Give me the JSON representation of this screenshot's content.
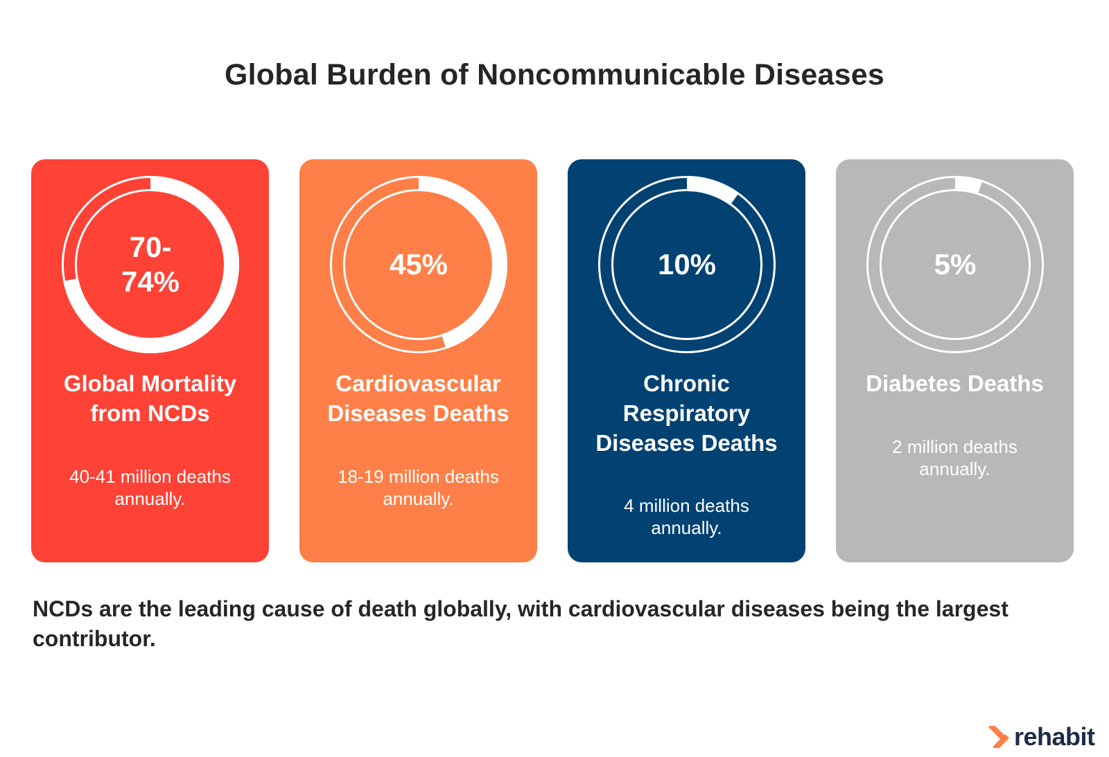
{
  "title": "Global Burden of Noncommunicable Diseases",
  "chart_data": {
    "type": "donut-gauges",
    "items": [
      {
        "percent_label": "70-\n74%",
        "value_percent": 72,
        "label": "Global Mortality from NCDs",
        "description": "40-41 million deaths annually.",
        "color": "#fe4235"
      },
      {
        "percent_label": "45%",
        "value_percent": 45,
        "label": "Cardiovascular Diseases Deaths",
        "description": "18-19 million deaths annually.",
        "color": "#fe7f47"
      },
      {
        "percent_label": "10%",
        "value_percent": 10,
        "label": "Chronic Respiratory Diseases Deaths",
        "description": "4 million deaths annually.",
        "color": "#024273"
      },
      {
        "percent_label": "5%",
        "value_percent": 5,
        "label": "Diabetes Deaths",
        "description": "2 million deaths annually.",
        "color": "#b8b8b8"
      }
    ]
  },
  "footer": "NCDs are the leading cause of death globally, with cardiovascular diseases being the largest contributor.",
  "brand": {
    "name": "rehabit",
    "icon": "rehabit-logo-icon",
    "icon_color": "#fe7f47"
  }
}
